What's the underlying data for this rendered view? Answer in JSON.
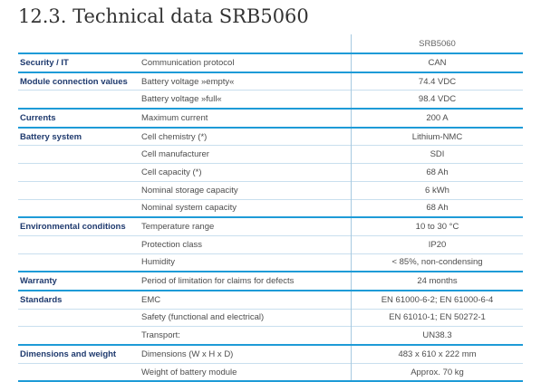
{
  "heading": "12.3. Technical data SRB5060",
  "column_header": "SRB5060",
  "rows": [
    {
      "group": "Security / IT",
      "param": "Communication protocol",
      "value": "CAN"
    },
    {
      "group": "Module connection values",
      "param": "Battery voltage »empty«",
      "value": "74.4 VDC"
    },
    {
      "group": "",
      "param": "Battery voltage »full«",
      "value": "98.4 VDC"
    },
    {
      "group": "Currents",
      "param": "Maximum current",
      "value": "200 A"
    },
    {
      "group": "Battery system",
      "param": "Cell chemistry (*)",
      "value": "Lithium-NMC"
    },
    {
      "group": "",
      "param": "Cell manufacturer",
      "value": "SDI"
    },
    {
      "group": "",
      "param": "Cell capacity (*)",
      "value": "68 Ah"
    },
    {
      "group": "",
      "param": "Nominal storage capacity",
      "value": "6 kWh"
    },
    {
      "group": "",
      "param": "Nominal system capacity",
      "value": "68 Ah"
    },
    {
      "group": "Environmental conditions",
      "param": "Temperature range",
      "value": "10 to 30 °C"
    },
    {
      "group": "",
      "param": "Protection class",
      "value": "IP20"
    },
    {
      "group": "",
      "param": "Humidity",
      "value": "< 85%, non-condensing"
    },
    {
      "group": "Warranty",
      "param": "Period of limitation for claims for defects",
      "value": "24 months"
    },
    {
      "group": "Standards",
      "param": "EMC",
      "value": "EN 61000-6-2; EN 61000-6-4"
    },
    {
      "group": "",
      "param": "Safety (functional and electrical)",
      "value": "EN 61010-1; EN 50272-1"
    },
    {
      "group": "",
      "param": "Transport:",
      "value": "UN38.3"
    },
    {
      "group": "Dimensions and weight",
      "param": "Dimensions (W x H x D)",
      "value": "483 x 610 x 222 mm"
    },
    {
      "group": "",
      "param": "Weight of battery module",
      "value": "Approx. 70 kg"
    }
  ]
}
